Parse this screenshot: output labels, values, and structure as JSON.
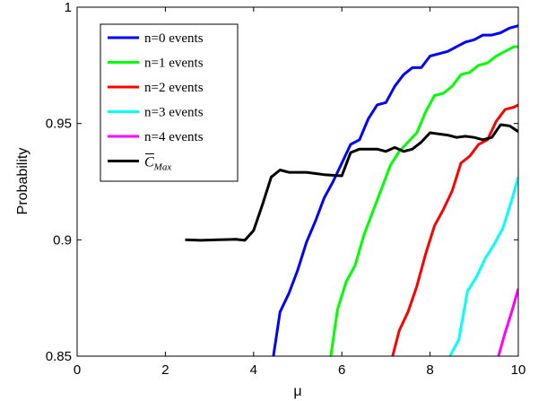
{
  "chart_data": {
    "type": "line",
    "xlabel": "μ",
    "ylabel": "Probability",
    "xlim": [
      0,
      10
    ],
    "ylim": [
      0.85,
      1
    ],
    "xticks": [
      0,
      2,
      4,
      6,
      8,
      10
    ],
    "yticks": [
      0.85,
      0.9,
      0.95,
      1
    ],
    "ytick_labels": [
      "0.85",
      "0.9",
      "0.95",
      "1"
    ],
    "grid": false,
    "legend_position": "top-left",
    "series": [
      {
        "name": "n=0 events",
        "color": "#0000ff",
        "x": [
          4.45,
          4.6,
          4.8,
          5.0,
          5.2,
          5.4,
          5.6,
          5.8,
          6.0,
          6.2,
          6.4,
          6.6,
          6.8,
          7.0,
          7.2,
          7.4,
          7.6,
          7.8,
          8.0,
          8.2,
          8.4,
          8.6,
          8.8,
          9.0,
          9.2,
          9.4,
          9.6,
          9.8,
          10.0
        ],
        "y": [
          0.85,
          0.869,
          0.877,
          0.887,
          0.899,
          0.908,
          0.918,
          0.925,
          0.933,
          0.941,
          0.943,
          0.952,
          0.958,
          0.959,
          0.966,
          0.971,
          0.974,
          0.974,
          0.979,
          0.98,
          0.981,
          0.983,
          0.985,
          0.986,
          0.988,
          0.988,
          0.989,
          0.991,
          0.992
        ]
      },
      {
        "name": "n=1 events",
        "color": "#00ff00",
        "x": [
          5.75,
          5.9,
          6.1,
          6.3,
          6.5,
          6.7,
          6.9,
          7.1,
          7.3,
          7.5,
          7.7,
          7.9,
          8.1,
          8.3,
          8.5,
          8.7,
          8.9,
          9.1,
          9.3,
          9.5,
          9.7,
          9.9,
          10.0
        ],
        "y": [
          0.85,
          0.87,
          0.882,
          0.889,
          0.902,
          0.912,
          0.922,
          0.932,
          0.938,
          0.942,
          0.946,
          0.955,
          0.962,
          0.963,
          0.966,
          0.971,
          0.972,
          0.975,
          0.976,
          0.979,
          0.981,
          0.983,
          0.983
        ]
      },
      {
        "name": "n=2 events",
        "color": "#ff0000",
        "x": [
          7.15,
          7.3,
          7.5,
          7.7,
          7.9,
          8.1,
          8.3,
          8.5,
          8.7,
          8.9,
          9.1,
          9.3,
          9.5,
          9.7,
          9.9,
          10.0
        ],
        "y": [
          0.85,
          0.861,
          0.869,
          0.88,
          0.894,
          0.906,
          0.913,
          0.921,
          0.933,
          0.936,
          0.941,
          0.943,
          0.951,
          0.956,
          0.957,
          0.958
        ]
      },
      {
        "name": "n=3 events",
        "color": "#00ffff",
        "x": [
          8.45,
          8.65,
          8.85,
          9.05,
          9.25,
          9.45,
          9.65,
          9.85,
          10.0
        ],
        "y": [
          0.85,
          0.857,
          0.878,
          0.884,
          0.892,
          0.898,
          0.905,
          0.917,
          0.927
        ]
      },
      {
        "name": "n=4 events",
        "color": "#ff00ff",
        "x": [
          9.55,
          9.7,
          9.85,
          10.0
        ],
        "y": [
          0.85,
          0.86,
          0.869,
          0.879
        ]
      },
      {
        "name": "C̄Max",
        "name_base": "C",
        "name_sub": "Max",
        "color": "#000000",
        "x": [
          2.45,
          2.8,
          3.2,
          3.6,
          3.8,
          4.0,
          4.2,
          4.4,
          4.6,
          4.8,
          5.2,
          5.6,
          6.0,
          6.2,
          6.4,
          6.6,
          6.8,
          7.0,
          7.2,
          7.4,
          7.6,
          7.8,
          8.0,
          8.2,
          8.4,
          8.6,
          8.8,
          9.0,
          9.2,
          9.4,
          9.6,
          9.8,
          10.0
        ],
        "y": [
          0.9,
          0.8998,
          0.9,
          0.9002,
          0.8998,
          0.904,
          0.915,
          0.927,
          0.93,
          0.929,
          0.929,
          0.928,
          0.9275,
          0.9375,
          0.939,
          0.939,
          0.939,
          0.938,
          0.9397,
          0.938,
          0.939,
          0.942,
          0.946,
          0.9455,
          0.945,
          0.944,
          0.9445,
          0.944,
          0.943,
          0.944,
          0.9495,
          0.949,
          0.9465
        ]
      }
    ]
  }
}
